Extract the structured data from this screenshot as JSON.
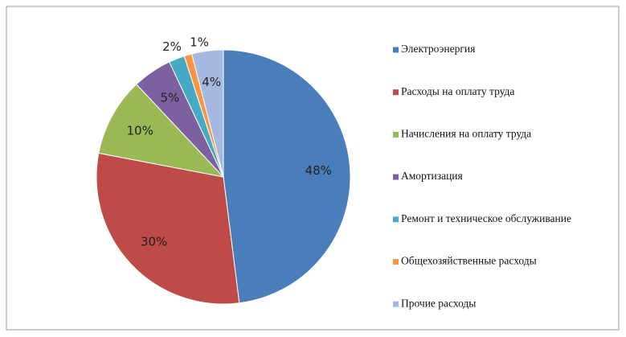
{
  "chart_data": {
    "type": "pie",
    "categories": [
      "Электроэнергия",
      "Расходы на оплату труда",
      "Начисления на оплату труда",
      "Амортизация",
      "Ремонт и техническое обслуживание",
      "Общехозяйственные расходы",
      "Прочие расходы"
    ],
    "values": [
      48,
      30,
      10,
      5,
      2,
      1,
      4
    ],
    "value_labels": [
      "48%",
      "30%",
      "10%",
      "5%",
      "2%",
      "1%",
      "4%"
    ],
    "colors": [
      "#4a7ebb",
      "#be4b48",
      "#98b954",
      "#7d60a0",
      "#46aac5",
      "#f79646",
      "#a5b9e0"
    ],
    "legend": "right"
  }
}
